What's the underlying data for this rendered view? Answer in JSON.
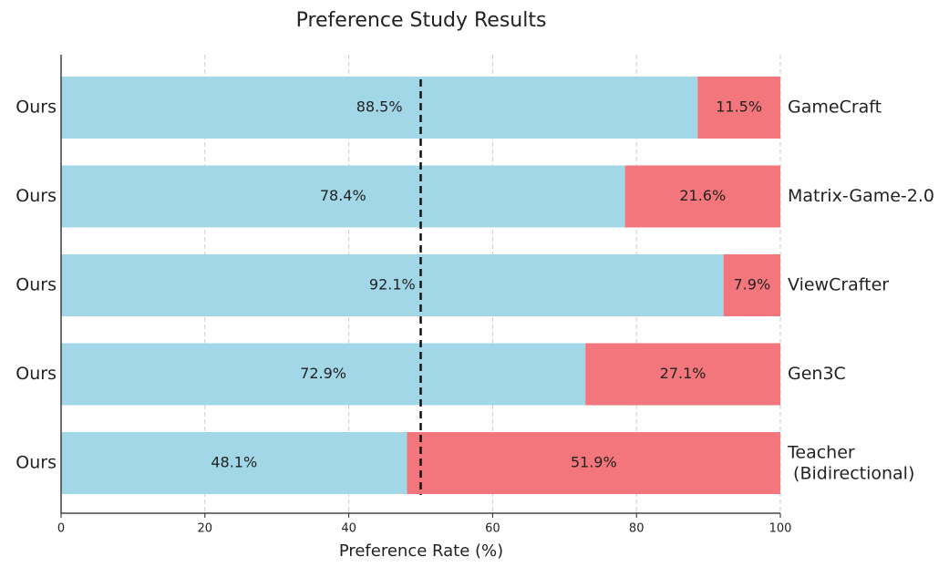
{
  "chart_data": {
    "type": "stacked_barh",
    "title": "Preference Study Results",
    "xlabel": "Preference Rate (%)",
    "left_labels": [
      "Ours",
      "Ours",
      "Ours",
      "Ours",
      "Ours"
    ],
    "categories": [
      "GameCraft",
      "Matrix-Game-2.0",
      "ViewCrafter",
      "Gen3C",
      "Teacher\n (Bidirectional)"
    ],
    "series": [
      {
        "color": "#a2d7e8",
        "values": [
          88.5,
          78.4,
          92.1,
          72.9,
          48.1
        ],
        "value_labels": [
          "88.5%",
          "78.4%",
          "92.1%",
          "72.9%",
          "48.1%"
        ]
      },
      {
        "color": "#f2767b",
        "values": [
          11.5,
          21.6,
          7.9,
          27.1,
          51.9
        ],
        "value_labels": [
          "11.5%",
          "21.6%",
          "7.9%",
          "27.1%",
          "51.9%"
        ]
      }
    ],
    "xlim": [
      0,
      100
    ],
    "xticks": [
      0,
      20,
      40,
      60,
      80,
      100
    ],
    "grid": true,
    "reference_line": 50
  }
}
